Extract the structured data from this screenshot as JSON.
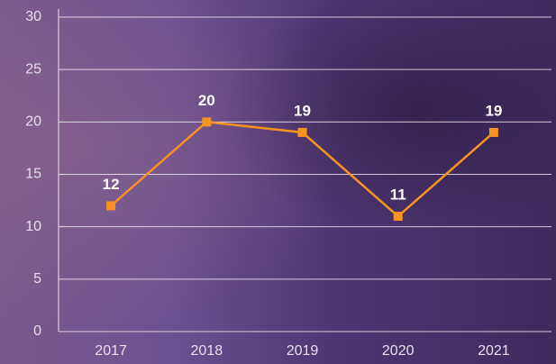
{
  "chart_data": {
    "type": "line",
    "categories": [
      "2017",
      "2018",
      "2019",
      "2020",
      "2021"
    ],
    "values": [
      12,
      20,
      19,
      11,
      19
    ],
    "color": "#f7931e",
    "ylim": [
      0,
      30
    ],
    "yticks": [
      0,
      5,
      10,
      15,
      20,
      25,
      30
    ],
    "grid": true
  }
}
